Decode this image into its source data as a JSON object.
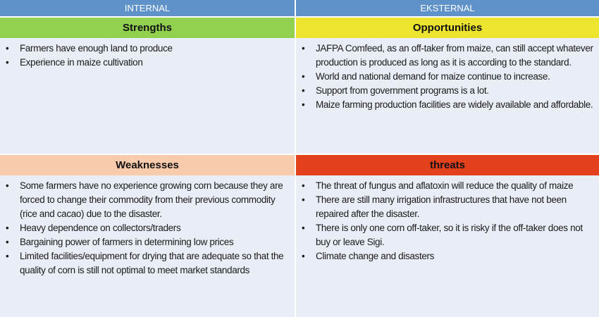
{
  "header": {
    "internal": "INTERNAL",
    "external": "EKSTERNAL"
  },
  "strengths": {
    "title": "Strengths",
    "items": [
      "Farmers have enough land to produce",
      "Experience in maize cultivation"
    ]
  },
  "opportunities": {
    "title": "Opportunities",
    "items": [
      "JAFPA Comfeed, as an off-taker from maize, can still accept whatever production is produced as long as it is according to the standard.",
      "World and national demand for maize continue to increase.",
      "Support from government programs is a lot.",
      "Maize farming production facilities are widely available and affordable."
    ]
  },
  "weaknesses": {
    "title": "Weaknesses",
    "items": [
      "Some farmers have no experience growing corn because they are forced to change their commodity from their previous commodity (rice and cacao) due to the disaster.",
      "Heavy dependence on collectors/traders",
      "Bargaining power of farmers in determining low prices",
      "Limited facilities/equipment for drying that are adequate so that the quality of corn is still not optimal to meet market standards"
    ]
  },
  "threats": {
    "title": "threats",
    "items": [
      "The threat of fungus and aflatoxin will reduce the quality of maize",
      "There are still many irrigation infrastructures that have not been repaired after the disaster.",
      "There is only one corn off-taker, so it is risky if the off-taker does not buy or leave Sigi.",
      "Climate change and disasters"
    ]
  },
  "colors": {
    "header": "#5f92c9",
    "strengths": "#92d050",
    "opportunities": "#ece42e",
    "weaknesses": "#f8cbad",
    "threats": "#e3401c",
    "background": "#e9eef6"
  }
}
